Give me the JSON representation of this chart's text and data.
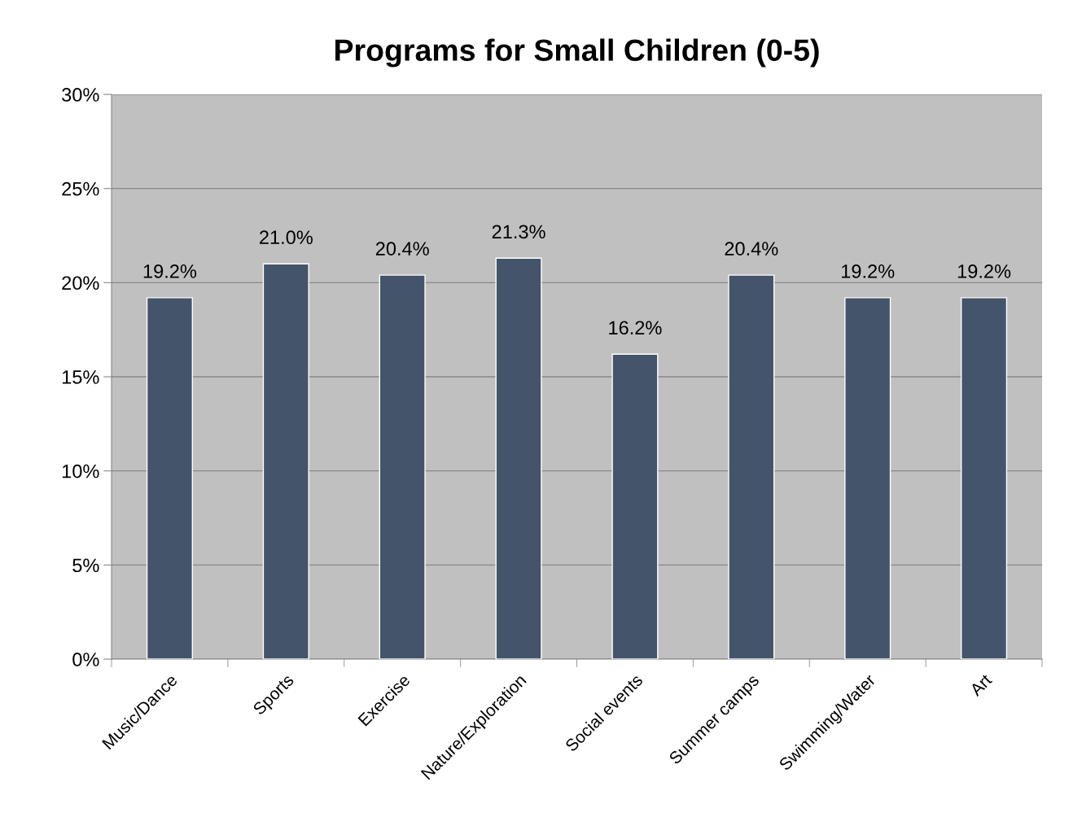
{
  "chart_data": {
    "type": "bar",
    "title": "Programs for Small Children (0-5)",
    "categories": [
      "Music/Dance",
      "Sports",
      "Exercise",
      "Nature/Exploration",
      "Social events",
      "Summer camps",
      "Swimming/Water",
      "Art"
    ],
    "values": [
      19.2,
      21.0,
      20.4,
      21.3,
      16.2,
      20.4,
      19.2,
      19.2
    ],
    "value_labels": [
      "19.2%",
      "21.0%",
      "20.4%",
      "21.3%",
      "16.2%",
      "20.4%",
      "19.2%",
      "19.2%"
    ],
    "color": "#44546a",
    "ylim": [
      0,
      30
    ],
    "yticks": [
      {
        "value": 0,
        "label": "0%"
      },
      {
        "value": 5,
        "label": "5%"
      },
      {
        "value": 10,
        "label": "10%"
      },
      {
        "value": 15,
        "label": "15%"
      },
      {
        "value": 20,
        "label": "20%"
      },
      {
        "value": 25,
        "label": "25%"
      },
      {
        "value": 30,
        "label": "30%"
      }
    ],
    "grid": "y",
    "legend": false
  }
}
